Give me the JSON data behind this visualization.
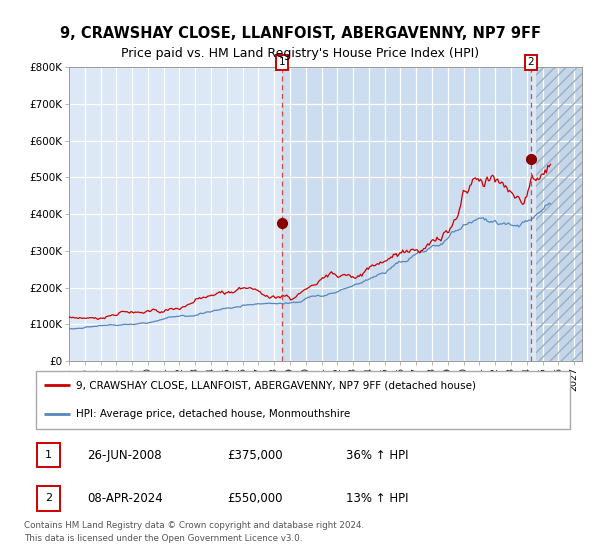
{
  "title": "9, CRAWSHAY CLOSE, LLANFOIST, ABERGAVENNY, NP7 9FF",
  "subtitle": "Price paid vs. HM Land Registry's House Price Index (HPI)",
  "legend_label_red": "9, CRAWSHAY CLOSE, LLANFOIST, ABERGAVENNY, NP7 9FF (detached house)",
  "legend_label_blue": "HPI: Average price, detached house, Monmouthshire",
  "annotation1_date": "26-JUN-2008",
  "annotation1_price": "£375,000",
  "annotation1_hpi": "36% ↑ HPI",
  "annotation2_date": "08-APR-2024",
  "annotation2_price": "£550,000",
  "annotation2_hpi": "13% ↑ HPI",
  "sale1_date_num": 2008.49,
  "sale1_price": 375000,
  "sale2_date_num": 2024.27,
  "sale2_price": 550000,
  "ylim": [
    0,
    800000
  ],
  "xlim_start": 1995.0,
  "xlim_end": 2027.5,
  "background_color": "#ffffff",
  "plot_bg_color": "#dce8f5",
  "grid_color": "#ffffff",
  "red_line_color": "#cc0000",
  "blue_line_color": "#5588bb",
  "dot_color": "#880000",
  "vline_color": "#dd4444",
  "footer_text": "Contains HM Land Registry data © Crown copyright and database right 2024.\nThis data is licensed under the Open Government Licence v3.0.",
  "ytick_values": [
    0,
    100000,
    200000,
    300000,
    400000,
    500000,
    600000,
    700000,
    800000
  ],
  "title_fontsize": 10.5,
  "subtitle_fontsize": 9.0
}
